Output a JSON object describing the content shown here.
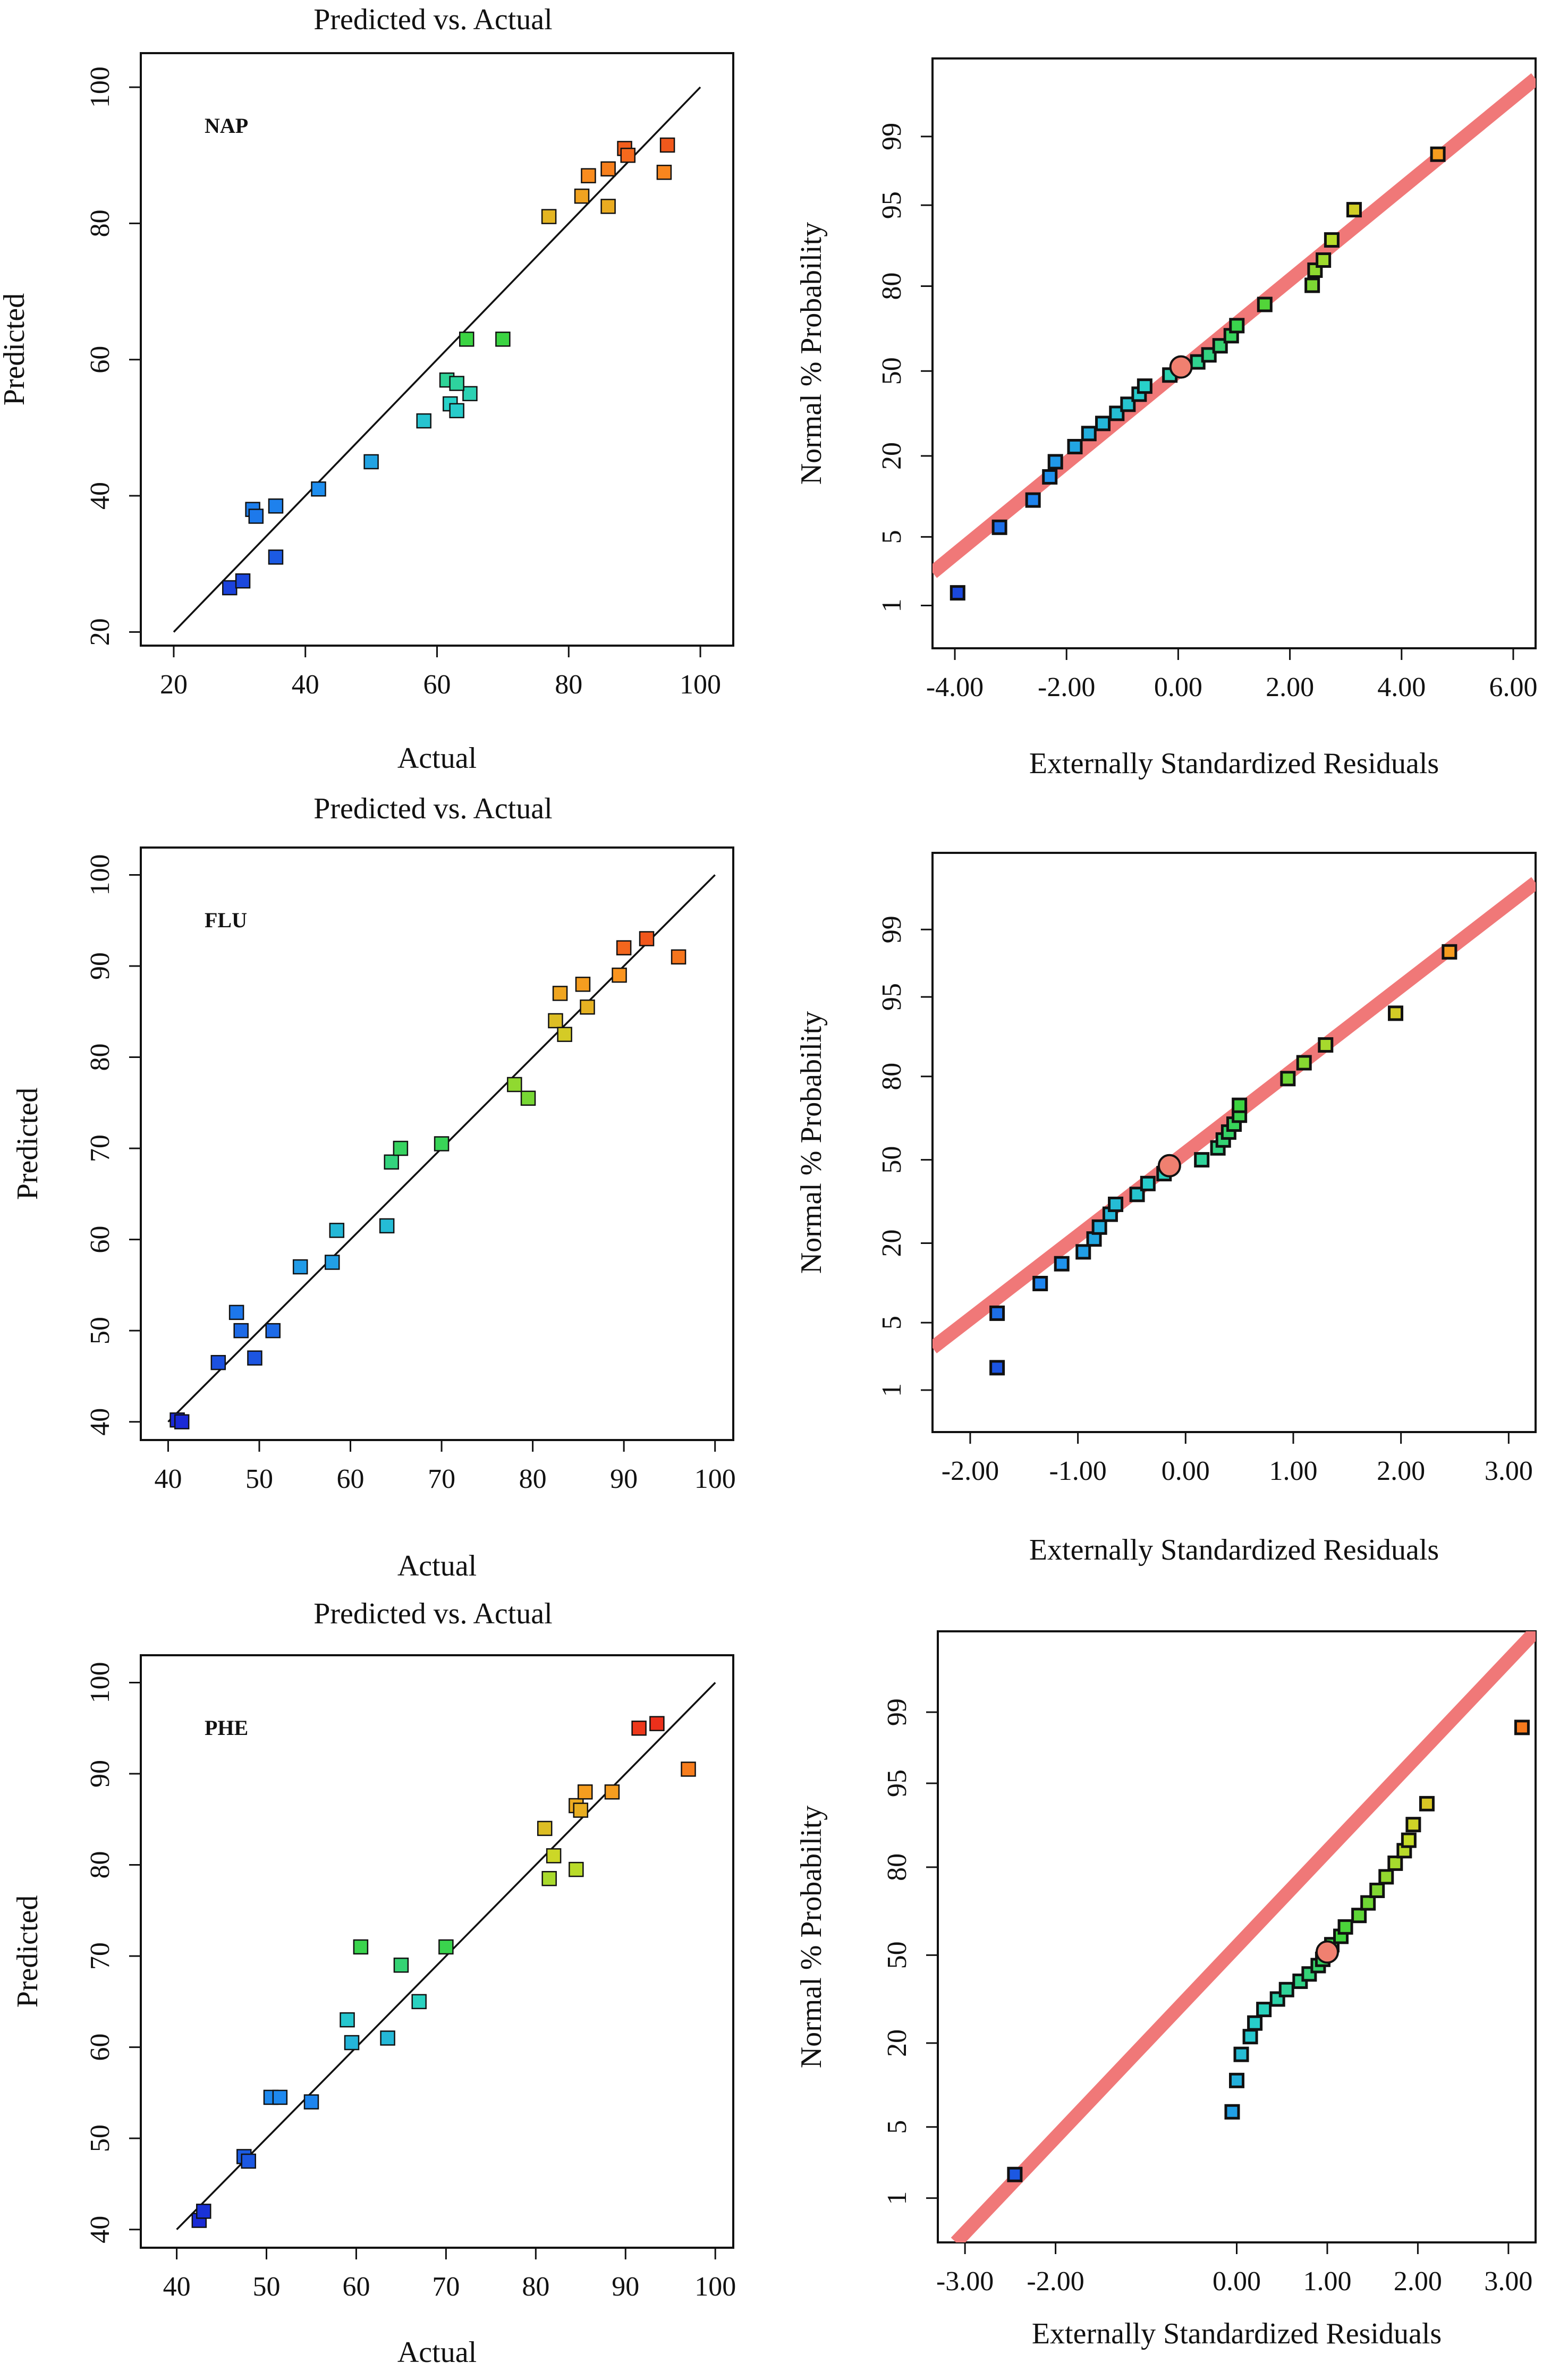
{
  "colors": {
    "frame": "#111111",
    "fit_line": "#111111",
    "prob_line": "#f07878",
    "marker_edge": "#111111",
    "background": "#ffffff",
    "heat_low": "#1a2ad6",
    "heat_mid": "#3ad43a",
    "heat_high": "#e8141a"
  },
  "chart_data": [
    {
      "type": "scatter",
      "title": "Predicted vs. Actual",
      "label": "NAP",
      "xlabel": "Actual",
      "ylabel": "Predicted",
      "xlim": [
        15,
        105
      ],
      "ylim": [
        18,
        105
      ],
      "xticks": [
        20,
        40,
        60,
        80,
        100
      ],
      "yticks": [
        20,
        40,
        60,
        80,
        100
      ],
      "reference_line": [
        [
          20,
          20
        ],
        [
          100,
          100
        ]
      ],
      "points": [
        {
          "x": 28.5,
          "y": 26.5
        },
        {
          "x": 30.5,
          "y": 27.5
        },
        {
          "x": 35.5,
          "y": 31
        },
        {
          "x": 32,
          "y": 38
        },
        {
          "x": 32.5,
          "y": 37
        },
        {
          "x": 35.5,
          "y": 38.5
        },
        {
          "x": 42,
          "y": 41
        },
        {
          "x": 50,
          "y": 45
        },
        {
          "x": 58,
          "y": 51
        },
        {
          "x": 62,
          "y": 53.5
        },
        {
          "x": 63,
          "y": 52.5
        },
        {
          "x": 65,
          "y": 55
        },
        {
          "x": 61.5,
          "y": 57
        },
        {
          "x": 63,
          "y": 56.5
        },
        {
          "x": 64.5,
          "y": 63
        },
        {
          "x": 70,
          "y": 63
        },
        {
          "x": 77,
          "y": 81
        },
        {
          "x": 82,
          "y": 84
        },
        {
          "x": 83,
          "y": 87
        },
        {
          "x": 86,
          "y": 88
        },
        {
          "x": 86,
          "y": 82.5
        },
        {
          "x": 88.5,
          "y": 91
        },
        {
          "x": 89,
          "y": 90
        },
        {
          "x": 94.5,
          "y": 87.5
        },
        {
          "x": 95,
          "y": 91.5
        }
      ]
    },
    {
      "type": "scatter",
      "title": "",
      "label": "",
      "xlabel": "Externally Standardized Residuals",
      "ylabel": "Normal % Probability",
      "xlim": [
        -4.4,
        6.4
      ],
      "ylim": [
        -2.75,
        3.1
      ],
      "xticks": [
        "-4.00",
        "-2.00",
        "0.00",
        "2.00",
        "4.00",
        "6.00"
      ],
      "yticks": [
        "1",
        "5",
        "20",
        "50",
        "80",
        "95",
        "99"
      ],
      "reference_line": [
        [
          -4.4,
          -2.0
        ],
        [
          6.4,
          2.9
        ]
      ],
      "points": [
        {
          "x": -3.95,
          "y": -2.2
        },
        {
          "x": -3.2,
          "y": -1.55
        },
        {
          "x": -2.6,
          "y": -1.28
        },
        {
          "x": -2.3,
          "y": -1.05
        },
        {
          "x": -2.2,
          "y": -0.9
        },
        {
          "x": -1.85,
          "y": -0.75
        },
        {
          "x": -1.6,
          "y": -0.62
        },
        {
          "x": -1.35,
          "y": -0.52
        },
        {
          "x": -1.1,
          "y": -0.42
        },
        {
          "x": -0.9,
          "y": -0.33
        },
        {
          "x": -0.7,
          "y": -0.23
        },
        {
          "x": -0.6,
          "y": -0.15
        },
        {
          "x": -0.15,
          "y": -0.04
        },
        {
          "x": 0.05,
          "y": 0.04
        },
        {
          "x": 0.35,
          "y": 0.09
        },
        {
          "x": 0.55,
          "y": 0.16
        },
        {
          "x": 0.75,
          "y": 0.25
        },
        {
          "x": 0.95,
          "y": 0.35
        },
        {
          "x": 1.05,
          "y": 0.45
        },
        {
          "x": 1.55,
          "y": 0.66
        },
        {
          "x": 2.4,
          "y": 0.85
        },
        {
          "x": 2.45,
          "y": 1.0
        },
        {
          "x": 2.6,
          "y": 1.1
        },
        {
          "x": 2.75,
          "y": 1.3
        },
        {
          "x": 3.15,
          "y": 1.6
        },
        {
          "x": 4.65,
          "y": 2.15
        }
      ]
    },
    {
      "type": "scatter",
      "title": "Predicted vs. Actual",
      "label": "FLU",
      "xlabel": "Actual",
      "ylabel": "Predicted",
      "xlim": [
        37,
        102
      ],
      "ylim": [
        38,
        103
      ],
      "xticks": [
        40,
        50,
        60,
        70,
        80,
        90,
        100
      ],
      "yticks": [
        40,
        50,
        60,
        70,
        80,
        90,
        100
      ],
      "reference_line": [
        [
          40,
          40
        ],
        [
          100,
          100
        ]
      ],
      "points": [
        {
          "x": 41,
          "y": 40.2
        },
        {
          "x": 41.5,
          "y": 40
        },
        {
          "x": 45.5,
          "y": 46.5
        },
        {
          "x": 49.5,
          "y": 47
        },
        {
          "x": 48,
          "y": 50
        },
        {
          "x": 51.5,
          "y": 50
        },
        {
          "x": 47.5,
          "y": 52
        },
        {
          "x": 54.5,
          "y": 57
        },
        {
          "x": 58,
          "y": 57.5
        },
        {
          "x": 58.5,
          "y": 61
        },
        {
          "x": 64,
          "y": 61.5
        },
        {
          "x": 64.5,
          "y": 68.5
        },
        {
          "x": 65.5,
          "y": 70
        },
        {
          "x": 70,
          "y": 70.5
        },
        {
          "x": 78,
          "y": 77
        },
        {
          "x": 79.5,
          "y": 75.5
        },
        {
          "x": 82.5,
          "y": 84
        },
        {
          "x": 83.5,
          "y": 82.5
        },
        {
          "x": 83,
          "y": 87
        },
        {
          "x": 85.5,
          "y": 88
        },
        {
          "x": 86,
          "y": 85.5
        },
        {
          "x": 89.5,
          "y": 89
        },
        {
          "x": 90,
          "y": 92
        },
        {
          "x": 92.5,
          "y": 93
        },
        {
          "x": 96,
          "y": 91
        }
      ]
    },
    {
      "type": "scatter",
      "title": "",
      "label": "",
      "xlabel": "Externally Standardized Residuals",
      "ylabel": "Normal % Probability",
      "xlim": [
        -2.35,
        3.25
      ],
      "ylim": [
        -2.75,
        3.1
      ],
      "xticks": [
        "-2.00",
        "-1.00",
        "0.00",
        "1.00",
        "2.00",
        "3.00"
      ],
      "yticks": [
        "1",
        "5",
        "20",
        "50",
        "80",
        "95",
        "99"
      ],
      "reference_line": [
        [
          -2.35,
          -1.9
        ],
        [
          3.25,
          2.8
        ]
      ],
      "points": [
        {
          "x": -1.75,
          "y": -2.1
        },
        {
          "x": -1.75,
          "y": -1.55
        },
        {
          "x": -1.35,
          "y": -1.25
        },
        {
          "x": -1.15,
          "y": -1.05
        },
        {
          "x": -0.95,
          "y": -0.93
        },
        {
          "x": -0.85,
          "y": -0.8
        },
        {
          "x": -0.8,
          "y": -0.68
        },
        {
          "x": -0.7,
          "y": -0.55
        },
        {
          "x": -0.65,
          "y": -0.45
        },
        {
          "x": -0.45,
          "y": -0.35
        },
        {
          "x": -0.35,
          "y": -0.24
        },
        {
          "x": -0.2,
          "y": -0.14
        },
        {
          "x": -0.15,
          "y": -0.06
        },
        {
          "x": 0.15,
          "y": 0.0
        },
        {
          "x": 0.3,
          "y": 0.12
        },
        {
          "x": 0.35,
          "y": 0.2
        },
        {
          "x": 0.4,
          "y": 0.28
        },
        {
          "x": 0.45,
          "y": 0.36
        },
        {
          "x": 0.5,
          "y": 0.45
        },
        {
          "x": 0.5,
          "y": 0.55
        },
        {
          "x": 0.95,
          "y": 0.82
        },
        {
          "x": 1.1,
          "y": 0.98
        },
        {
          "x": 1.3,
          "y": 1.16
        },
        {
          "x": 1.95,
          "y": 1.48
        },
        {
          "x": 2.45,
          "y": 2.1
        }
      ]
    },
    {
      "type": "scatter",
      "title": "Predicted vs. Actual",
      "label": "PHE",
      "xlabel": "Actual",
      "ylabel": "Predicted",
      "xlim": [
        36,
        102
      ],
      "ylim": [
        38,
        103
      ],
      "xticks": [
        40,
        50,
        60,
        70,
        80,
        90,
        100
      ],
      "yticks": [
        40,
        50,
        60,
        70,
        80,
        90,
        100
      ],
      "reference_line": [
        [
          40,
          40
        ],
        [
          100,
          100
        ]
      ],
      "points": [
        {
          "x": 42.5,
          "y": 41
        },
        {
          "x": 43,
          "y": 42
        },
        {
          "x": 47.5,
          "y": 48
        },
        {
          "x": 48,
          "y": 47.5
        },
        {
          "x": 50.5,
          "y": 54.5
        },
        {
          "x": 51.5,
          "y": 54.5
        },
        {
          "x": 55,
          "y": 54
        },
        {
          "x": 59,
          "y": 63
        },
        {
          "x": 59.5,
          "y": 60.5
        },
        {
          "x": 60.5,
          "y": 71
        },
        {
          "x": 63.5,
          "y": 61
        },
        {
          "x": 65,
          "y": 69
        },
        {
          "x": 67,
          "y": 65
        },
        {
          "x": 70,
          "y": 71
        },
        {
          "x": 81,
          "y": 84
        },
        {
          "x": 81.5,
          "y": 78.5
        },
        {
          "x": 82,
          "y": 81
        },
        {
          "x": 84.5,
          "y": 79.5
        },
        {
          "x": 84.5,
          "y": 86.5
        },
        {
          "x": 85,
          "y": 86
        },
        {
          "x": 85.5,
          "y": 88
        },
        {
          "x": 88.5,
          "y": 88
        },
        {
          "x": 91.5,
          "y": 95
        },
        {
          "x": 93.5,
          "y": 95.5
        },
        {
          "x": 97,
          "y": 90.5
        }
      ]
    },
    {
      "type": "scatter",
      "title": "",
      "label": "",
      "xlabel": "Externally Standardized Residuals",
      "ylabel": "Normal % Probability",
      "xlim": [
        -3.3,
        3.3
      ],
      "ylim": [
        -2.75,
        3.1
      ],
      "xticks": [
        "-3.00",
        "-2.00",
        "0.00",
        "1.00",
        "2.00",
        "3.00"
      ],
      "yticks": [
        "1",
        "5",
        "20",
        "50",
        "80",
        "95",
        "99"
      ],
      "reference_line": [
        [
          -3.1,
          -2.75
        ],
        [
          3.3,
          3.1
        ]
      ],
      "points": [
        {
          "x": -2.45,
          "y": -2.1
        },
        {
          "x": -0.05,
          "y": -1.5
        },
        {
          "x": 0.0,
          "y": -1.2
        },
        {
          "x": 0.05,
          "y": -0.95
        },
        {
          "x": 0.15,
          "y": -0.78
        },
        {
          "x": 0.2,
          "y": -0.65
        },
        {
          "x": 0.3,
          "y": -0.52
        },
        {
          "x": 0.45,
          "y": -0.42
        },
        {
          "x": 0.55,
          "y": -0.33
        },
        {
          "x": 0.7,
          "y": -0.25
        },
        {
          "x": 0.8,
          "y": -0.18
        },
        {
          "x": 0.9,
          "y": -0.1
        },
        {
          "x": 0.95,
          "y": -0.04
        },
        {
          "x": 1.0,
          "y": 0.03
        },
        {
          "x": 1.05,
          "y": 0.1
        },
        {
          "x": 1.15,
          "y": 0.18
        },
        {
          "x": 1.2,
          "y": 0.27
        },
        {
          "x": 1.35,
          "y": 0.38
        },
        {
          "x": 1.45,
          "y": 0.5
        },
        {
          "x": 1.55,
          "y": 0.62
        },
        {
          "x": 1.65,
          "y": 0.75
        },
        {
          "x": 1.75,
          "y": 0.88
        },
        {
          "x": 1.85,
          "y": 1.0
        },
        {
          "x": 1.9,
          "y": 1.1
        },
        {
          "x": 1.95,
          "y": 1.25
        },
        {
          "x": 2.1,
          "y": 1.45
        },
        {
          "x": 3.15,
          "y": 2.18
        }
      ]
    }
  ]
}
